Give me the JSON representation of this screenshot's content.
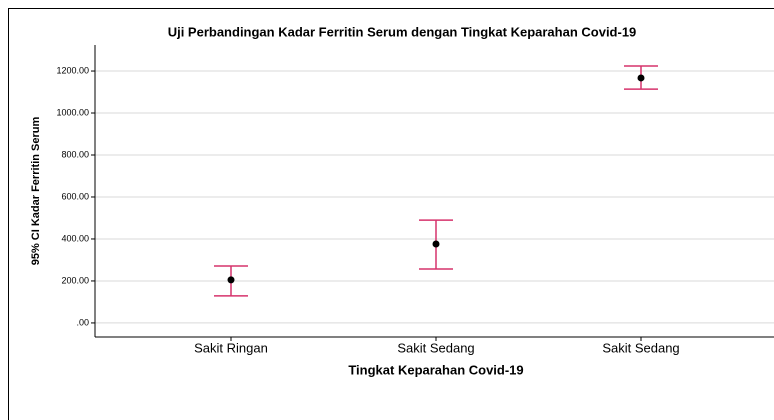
{
  "chart_data": {
    "type": "errorbar",
    "title": "Uji Perbandingan Kadar Ferritin Serum dengan Tingkat Keparahan Covid-19",
    "x_label": "Tingkat Keparahan Covid-19",
    "y_label": "95% CI Kadar Ferritin Serum",
    "categories": [
      "Sakit Ringan",
      "Sakit Sedang",
      "Sakit Sedang"
    ],
    "values": [
      205,
      376,
      1167
    ],
    "lower": [
      129,
      257,
      1114
    ],
    "upper": [
      271,
      490,
      1224
    ],
    "color": "#d6336c",
    "marker_color": "#000000",
    "ylim": [
      -67,
      1324
    ],
    "yticks": [
      {
        "value": 0,
        "label": ".00"
      },
      {
        "value": 200,
        "label": "200.00"
      },
      {
        "value": 400,
        "label": "400.00"
      },
      {
        "value": 600,
        "label": "600.00"
      },
      {
        "value": 800,
        "label": "800.00"
      },
      {
        "value": 1000,
        "label": "1000.00"
      },
      {
        "value": 1200,
        "label": "1200.00"
      }
    ],
    "grid": true
  }
}
